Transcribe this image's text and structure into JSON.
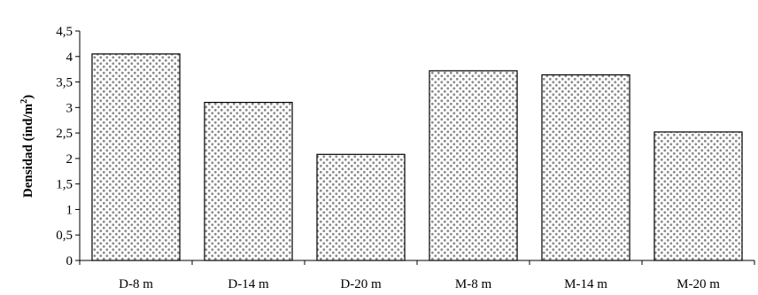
{
  "chart_data": {
    "type": "bar",
    "title": "",
    "xlabel": "",
    "ylabel": {
      "main": "Densidad (ind/m",
      "superscript": "2",
      "close": ")"
    },
    "categories": [
      "D-8 m",
      "D-14 m",
      "D-20 m",
      "M-8 m",
      "M-14 m",
      "M-20 m"
    ],
    "values": [
      4.05,
      3.1,
      2.08,
      3.72,
      3.64,
      2.52
    ],
    "ylim": [
      0,
      4.5
    ],
    "yticks": [
      "0",
      "0,5",
      "1",
      "1,5",
      "2",
      "2,5",
      "3",
      "3,5",
      "4",
      "4,5"
    ],
    "grid": false,
    "legend": "none",
    "bar_fill": "#ffffff",
    "bar_pattern_color": "#8a8a8a",
    "bar_stroke": "#000000"
  }
}
